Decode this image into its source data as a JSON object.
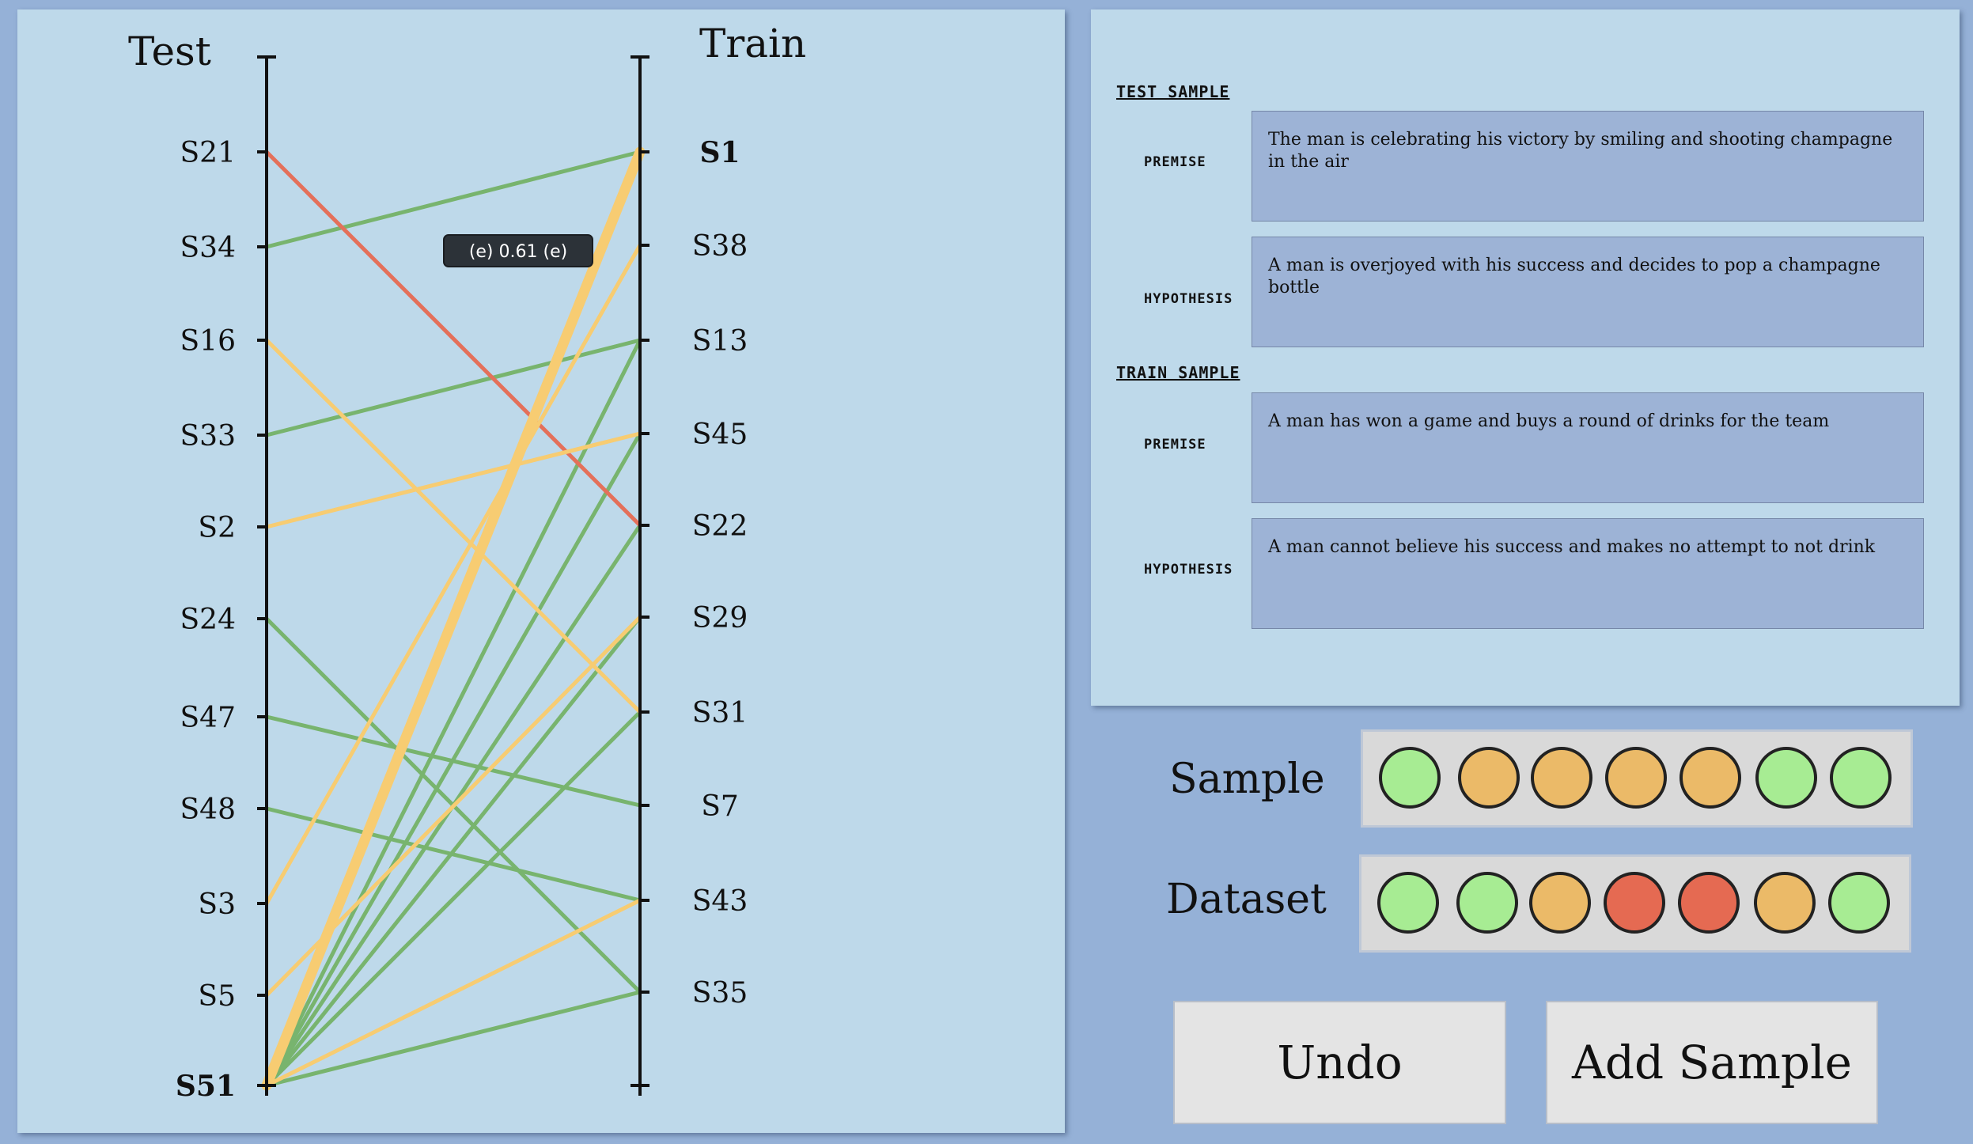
{
  "chart": {
    "left_axis_title": "Test",
    "right_axis_title": "Train",
    "tooltip": "(e) 0.61 (e)",
    "left_ticks": [
      "S21",
      "S34",
      "S16",
      "S33",
      "S2",
      "S24",
      "S47",
      "S48",
      "S3",
      "S5",
      "S51"
    ],
    "right_ticks": [
      "S1",
      "S38",
      "S13",
      "S45",
      "S22",
      "S29",
      "S31",
      "S7",
      "S43",
      "S35"
    ],
    "bold_left": "S51",
    "bold_right": "S1",
    "colors": {
      "green": "#78b46e",
      "yellow": "#f7cc72",
      "red": "#e4705a"
    },
    "links": [
      {
        "from": "S21",
        "to": "S22",
        "color": "red",
        "weight": 1
      },
      {
        "from": "S34",
        "to": "S1",
        "color": "green",
        "weight": 1
      },
      {
        "from": "S16",
        "to": "S31",
        "color": "yellow",
        "weight": 1
      },
      {
        "from": "S33",
        "to": "S13",
        "color": "green",
        "weight": 1
      },
      {
        "from": "S2",
        "to": "S45",
        "color": "yellow",
        "weight": 1
      },
      {
        "from": "S24",
        "to": "S35",
        "color": "green",
        "weight": 1
      },
      {
        "from": "S47",
        "to": "S7",
        "color": "green",
        "weight": 1
      },
      {
        "from": "S48",
        "to": "S43",
        "color": "green",
        "weight": 1
      },
      {
        "from": "S3",
        "to": "S38",
        "color": "yellow",
        "weight": 1
      },
      {
        "from": "S5",
        "to": "S29",
        "color": "yellow",
        "weight": 1
      },
      {
        "from": "S51",
        "to": "S1",
        "color": "yellow",
        "weight": 3
      },
      {
        "from": "S51",
        "to": "S13",
        "color": "green",
        "weight": 1
      },
      {
        "from": "S51",
        "to": "S45",
        "color": "green",
        "weight": 1
      },
      {
        "from": "S51",
        "to": "S22",
        "color": "green",
        "weight": 1
      },
      {
        "from": "S51",
        "to": "S29",
        "color": "green",
        "weight": 1
      },
      {
        "from": "S51",
        "to": "S31",
        "color": "green",
        "weight": 1
      },
      {
        "from": "S51",
        "to": "S43",
        "color": "yellow",
        "weight": 1
      },
      {
        "from": "S51",
        "to": "S35",
        "color": "green",
        "weight": 1
      }
    ]
  },
  "details": {
    "test_heading": "TEST SAMPLE",
    "train_heading": "TRAIN SAMPLE",
    "premise_label": "PREMISE",
    "hypothesis_label": "HYPOTHESIS",
    "test_premise": "The man is celebrating his victory by smiling and shooting champagne in the air",
    "test_hypothesis": "A man is overjoyed with his  success and decides to pop a champagne bottle",
    "train_premise": "A man has won a game and buys a round of drinks for the team",
    "train_hypothesis": "A man cannot believe his success and makes no attempt to not drink"
  },
  "sample_row": {
    "label": "Sample",
    "dots": [
      "#a7ec93",
      "#ebba68",
      "#ebba68",
      "#ebba68",
      "#ebba68",
      "#a7ec93",
      "#a7ec93"
    ]
  },
  "dataset_row": {
    "label": "Dataset",
    "dots": [
      "#a7ec93",
      "#a7ec93",
      "#ebba68",
      "#e56a52",
      "#e56a52",
      "#ebba68",
      "#a7ec93"
    ]
  },
  "buttons": {
    "undo": "Undo",
    "add_sample": "Add Sample"
  }
}
